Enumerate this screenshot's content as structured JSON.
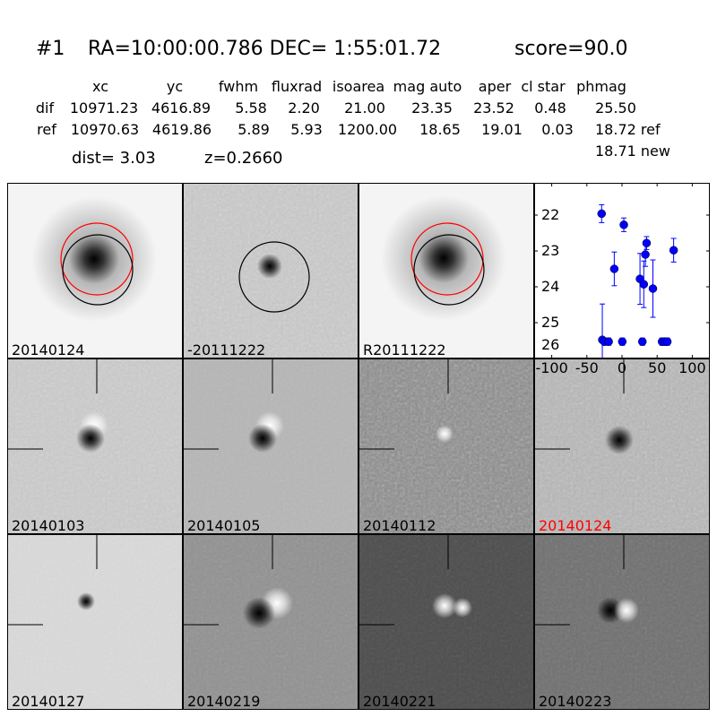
{
  "header": {
    "id": "#1",
    "coords": "RA=10:00:00.786 DEC= 1:55:01.72",
    "score": "score=90.0"
  },
  "table": {
    "columns": [
      "xc",
      "yc",
      "fwhm",
      "fluxrad",
      "isoarea",
      "mag auto",
      "aper",
      "cl star",
      "phmag"
    ],
    "rows": [
      {
        "label": "dif",
        "values": [
          "10971.23",
          "4616.89",
          "5.58",
          "2.20",
          "21.00",
          "23.35",
          "23.52",
          "0.48",
          "25.50"
        ]
      },
      {
        "label": "ref",
        "values": [
          "10970.63",
          "4619.86",
          "5.89",
          "5.93",
          "1200.00",
          "18.65",
          "19.01",
          "0.03",
          "18.72 ref"
        ]
      }
    ],
    "phmag_new": "18.71 new",
    "dist": "dist=  3.03",
    "z": "z=0.2660"
  },
  "panels": [
    {
      "label": "20140124",
      "label_color": "#000000"
    },
    {
      "label": "-20111222",
      "label_color": "#000000"
    },
    {
      "label": "R20111222",
      "label_color": "#000000"
    },
    {
      "label": "20140103",
      "label_color": "#000000"
    },
    {
      "label": "20140105",
      "label_color": "#000000"
    },
    {
      "label": "20140112",
      "label_color": "#000000"
    },
    {
      "label": "20140124",
      "label_color": "#ff0000"
    },
    {
      "label": "20140127",
      "label_color": "#000000"
    },
    {
      "label": "20140219",
      "label_color": "#000000"
    },
    {
      "label": "20140221",
      "label_color": "#000000"
    },
    {
      "label": "20140223",
      "label_color": "#000000"
    }
  ],
  "chart_data": {
    "type": "scatter",
    "title": "",
    "xlabel": "",
    "ylabel": "",
    "xlim": [
      -125,
      125
    ],
    "ylim": [
      26,
      21.1
    ],
    "y_inverted": true,
    "xticks": [
      "-100",
      "-50",
      "0",
      "50",
      "100"
    ],
    "yticks": [
      "22",
      "23",
      "24",
      "25",
      "26"
    ],
    "marker_color": "#0000ff",
    "points": [
      {
        "x": -29,
        "y": 21.96,
        "err": 0.25
      },
      {
        "x": 2.6,
        "y": 22.27,
        "err": 0.19
      },
      {
        "x": 35,
        "y": 22.78,
        "err": 0.18
      },
      {
        "x": 33.3,
        "y": 23.1,
        "err": 0.33
      },
      {
        "x": 73.5,
        "y": 22.98,
        "err": 0.33
      },
      {
        "x": -11,
        "y": 23.5,
        "err": 0.47
      },
      {
        "x": 25.6,
        "y": 23.78,
        "err": 0.71
      },
      {
        "x": 31,
        "y": 23.93,
        "err": 0.65
      },
      {
        "x": 44,
        "y": 24.05,
        "err": 0.8
      },
      {
        "x": -28,
        "y": 25.48,
        "err": 1.0
      },
      {
        "x": -25,
        "y": 25.53,
        "err": 0.1
      },
      {
        "x": -19,
        "y": 25.53,
        "err": 0.1
      },
      {
        "x": 0.4,
        "y": 25.53,
        "err": 0.1
      },
      {
        "x": 29,
        "y": 25.53,
        "err": 0.1
      },
      {
        "x": 57,
        "y": 25.53,
        "err": 0.1
      },
      {
        "x": 61,
        "y": 25.53,
        "err": 0.1
      },
      {
        "x": 64.5,
        "y": 25.53,
        "err": 0.1
      }
    ]
  }
}
